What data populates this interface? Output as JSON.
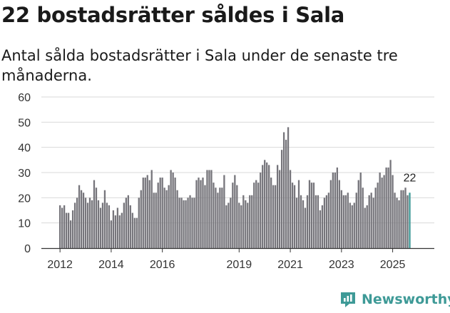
{
  "header": {
    "title": "22 bostadsrätter såldes i Sala",
    "subtitle": "Antal sålda bostadsrätter i Sala under de senaste tre månaderna."
  },
  "branding": {
    "name": "Newsworthy",
    "color": "#3e9a97"
  },
  "colors": {
    "bar": "#76757b",
    "highlight": "#3e9a97",
    "grid": "#d9d9d9",
    "axis": "#333333"
  },
  "chart_data": {
    "type": "bar",
    "title": "22 bostadsrätter såldes i Sala",
    "subtitle": "Antal sålda bostadsrätter i Sala under de senaste tre månaderna.",
    "xlabel": "",
    "ylabel": "",
    "ylim": [
      0,
      60
    ],
    "yticks": [
      0,
      10,
      20,
      30,
      40,
      50,
      60
    ],
    "grid": true,
    "legend": "none",
    "x_start": "2012-01",
    "x_frequency": "monthly",
    "xtick_labels": [
      "2012",
      "2014",
      "2016",
      "2019",
      "2021",
      "2023",
      "2025"
    ],
    "xtick_positions": [
      0,
      24,
      48,
      84,
      108,
      132,
      156
    ],
    "values": [
      17,
      16,
      17,
      14,
      14,
      11,
      15,
      18,
      20,
      25,
      23,
      22,
      20,
      18,
      20,
      19,
      27,
      24,
      19,
      16,
      18,
      23,
      18,
      17,
      11,
      15,
      13,
      16,
      13,
      14,
      18,
      20,
      21,
      17,
      14,
      12,
      12,
      20,
      23,
      28,
      28,
      29,
      27,
      31,
      22,
      22,
      26,
      28,
      28,
      24,
      23,
      25,
      31,
      30,
      28,
      23,
      20,
      20,
      19,
      19,
      20,
      21,
      20,
      20,
      27,
      28,
      27,
      28,
      25,
      31,
      31,
      31,
      26,
      24,
      22,
      24,
      24,
      29,
      17,
      18,
      20,
      26,
      29,
      25,
      18,
      17,
      21,
      19,
      18,
      21,
      21,
      26,
      27,
      26,
      30,
      33,
      35,
      34,
      33,
      28,
      25,
      25,
      33,
      31,
      39,
      46,
      43,
      48,
      31,
      26,
      25,
      20,
      27,
      21,
      19,
      16,
      21,
      27,
      26,
      26,
      21,
      21,
      15,
      17,
      20,
      21,
      22,
      27,
      30,
      30,
      32,
      27,
      23,
      21,
      21,
      22,
      18,
      17,
      18,
      22,
      27,
      30,
      24,
      16,
      17,
      21,
      22,
      20,
      24,
      26,
      30,
      28,
      29,
      32,
      32,
      35,
      29,
      22,
      20,
      19,
      23,
      23,
      24,
      21,
      22
    ],
    "highlight_last": 1,
    "value_label": {
      "index": 164,
      "text": "22"
    }
  }
}
